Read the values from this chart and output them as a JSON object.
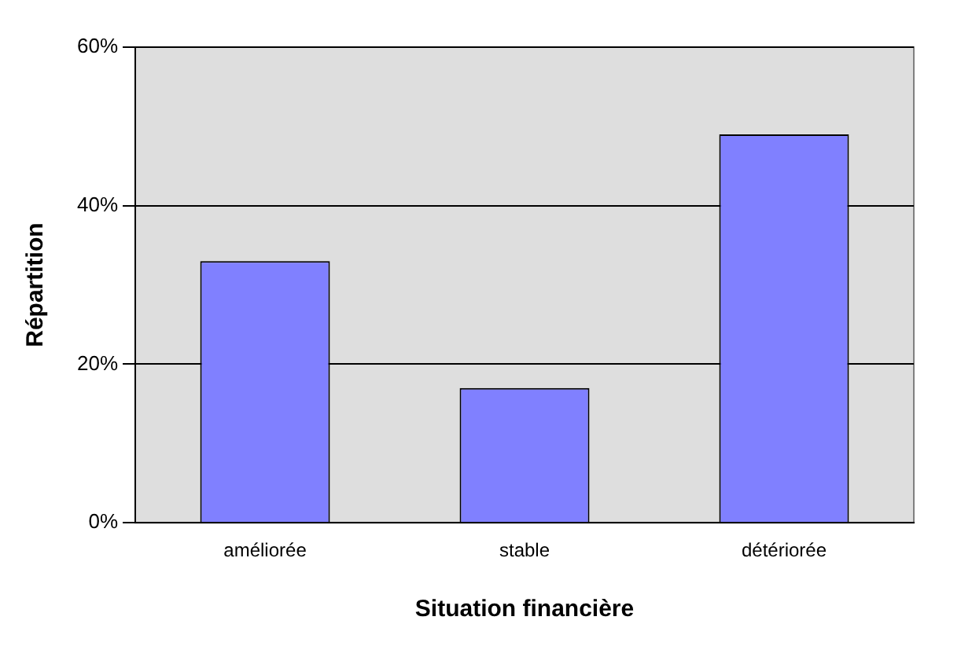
{
  "chart_data": {
    "type": "bar",
    "xlabel": "Situation financière",
    "ylabel": "Répartition",
    "categories": [
      "améliorée",
      "stable",
      "détériorée"
    ],
    "values": [
      33,
      17,
      49
    ],
    "color": "#8080ff",
    "ylim": [
      0,
      60
    ],
    "yticks": [
      {
        "value": 0,
        "label": "0%"
      },
      {
        "value": 20,
        "label": "20%"
      },
      {
        "value": 40,
        "label": "40%"
      },
      {
        "value": 60,
        "label": "60%"
      }
    ],
    "grid": "y",
    "legend": false
  }
}
